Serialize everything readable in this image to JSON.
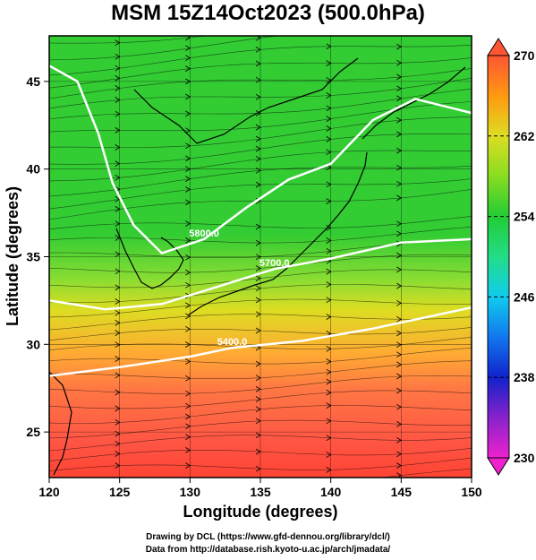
{
  "title": "MSM 15Z14Oct2023 (500.0hPa)",
  "credits": {
    "line1": "Drawing by DCL (https://www.gfd-dennou.org/library/dcl/)",
    "line2": "Data from http://database.rish.kyoto-u.ac.jp/arch/jmadata/"
  },
  "chart_data": {
    "type": "heatmap",
    "xlabel": "Longitude (degrees)",
    "ylabel": "Latitude  (degrees)",
    "xlim": [
      120,
      150
    ],
    "ylim": [
      22.4,
      47.6
    ],
    "xticks": [
      120,
      125,
      130,
      135,
      140,
      145,
      150
    ],
    "yticks": [
      25,
      30,
      35,
      40,
      45
    ],
    "grid": true,
    "field": "temperature (K)",
    "colorbar": {
      "min": 230,
      "max": 270,
      "tick_labels": [
        230,
        238,
        246,
        254,
        262,
        270
      ],
      "stops": [
        {
          "value": 230,
          "color": "#ee22cc"
        },
        {
          "value": 234,
          "color": "#8822cc"
        },
        {
          "value": 238,
          "color": "#1122cc"
        },
        {
          "value": 242,
          "color": "#1177ee"
        },
        {
          "value": 246,
          "color": "#11ccee"
        },
        {
          "value": 250,
          "color": "#22dd88"
        },
        {
          "value": 254,
          "color": "#22cc33"
        },
        {
          "value": 258,
          "color": "#88dd22"
        },
        {
          "value": 262,
          "color": "#dddd22"
        },
        {
          "value": 266,
          "color": "#ff9911"
        },
        {
          "value": 270,
          "color": "#ff5533"
        }
      ]
    },
    "contours": [
      {
        "label": "5400.0",
        "points": [
          [
            120,
            28.2
          ],
          [
            125,
            28.7
          ],
          [
            130,
            29.3
          ],
          [
            133,
            29.8
          ],
          [
            138,
            30.2
          ],
          [
            143,
            30.9
          ],
          [
            150,
            32.1
          ]
        ]
      },
      {
        "label": "5700.0",
        "points": [
          [
            120,
            32.5
          ],
          [
            124,
            32.0
          ],
          [
            128,
            32.3
          ],
          [
            132,
            33.3
          ],
          [
            136,
            34.3
          ],
          [
            140,
            34.9
          ],
          [
            145,
            35.8
          ],
          [
            150,
            36.0
          ]
        ]
      },
      {
        "label": "5800.0",
        "points": [
          [
            120,
            45.9
          ],
          [
            122,
            45.0
          ],
          [
            123.5,
            42.0
          ],
          [
            124.5,
            39.2
          ],
          [
            126,
            36.8
          ],
          [
            128,
            35.2
          ],
          [
            131,
            36.0
          ],
          [
            134,
            37.8
          ],
          [
            137,
            39.4
          ],
          [
            140,
            40.3
          ],
          [
            143,
            42.8
          ],
          [
            146,
            44.0
          ],
          [
            150,
            43.2
          ]
        ]
      }
    ],
    "contour_color": "#ffffff"
  }
}
